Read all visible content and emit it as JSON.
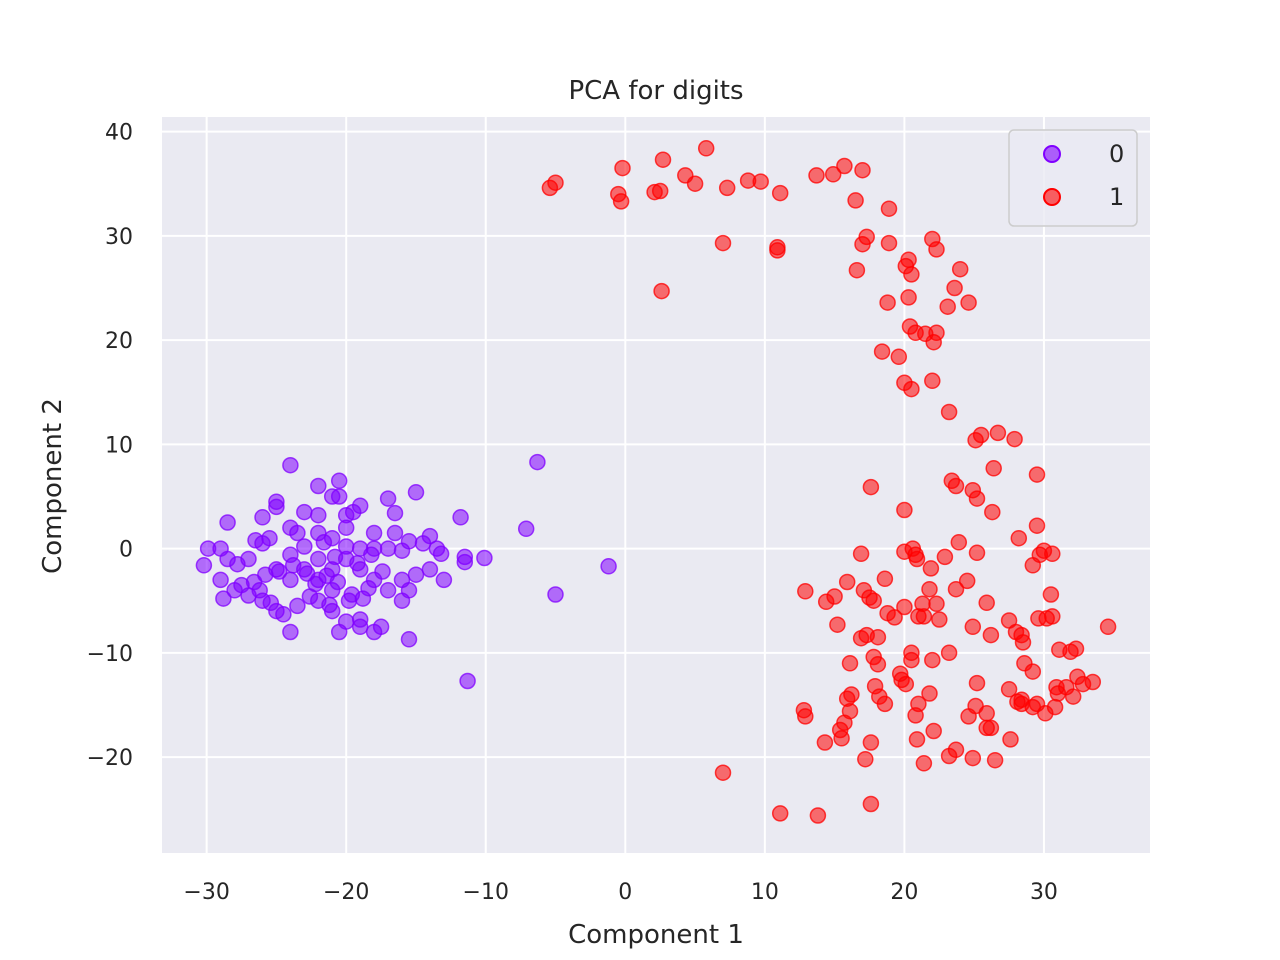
{
  "chart_data": {
    "type": "scatter",
    "title": "PCA for digits",
    "xlabel": "Component 1",
    "ylabel": "Component 2",
    "xlim": [
      -33.2,
      37.6
    ],
    "ylim": [
      -29.2,
      41.4
    ],
    "xticks": [
      -30,
      -20,
      -10,
      0,
      10,
      20,
      30
    ],
    "yticks": [
      -20,
      -10,
      0,
      10,
      20,
      30,
      40
    ],
    "tick_labels": {
      "x": [
        "−30",
        "−20",
        "−10",
        "0",
        "10",
        "20",
        "30"
      ],
      "y": [
        "−20",
        "−10",
        "0",
        "10",
        "20",
        "30",
        "40"
      ]
    },
    "grid": true,
    "legend_position": "top-right",
    "series": [
      {
        "name": "0",
        "color": "#8000ff",
        "points": [
          [
            -24,
            8
          ],
          [
            -20.5,
            6.5
          ],
          [
            -22,
            6
          ],
          [
            -20.5,
            5
          ],
          [
            -21,
            5
          ],
          [
            -25,
            4.5
          ],
          [
            -25,
            4
          ],
          [
            -17,
            4.8
          ],
          [
            -15,
            5.4
          ],
          [
            -19,
            4.1
          ],
          [
            -28.5,
            2.5
          ],
          [
            -26,
            3
          ],
          [
            -23,
            3.5
          ],
          [
            -22,
            3.2
          ],
          [
            -20,
            3.2
          ],
          [
            -19.5,
            3.5
          ],
          [
            -16.5,
            3.4
          ],
          [
            -11.8,
            3
          ],
          [
            -29.9,
            0
          ],
          [
            -29,
            0
          ],
          [
            -28.5,
            -1
          ],
          [
            -27,
            -1
          ],
          [
            -27.8,
            -1.5
          ],
          [
            -26.5,
            0.8
          ],
          [
            -26,
            0.5
          ],
          [
            -25.5,
            1
          ],
          [
            -24,
            2
          ],
          [
            -23.5,
            1.5
          ],
          [
            -22,
            1.5
          ],
          [
            -21,
            1
          ],
          [
            -20,
            2
          ],
          [
            -18,
            1.5
          ],
          [
            -16.5,
            1.5
          ],
          [
            -15.5,
            0.7
          ],
          [
            -14.5,
            0.5
          ],
          [
            -14,
            1.2
          ],
          [
            -13.5,
            0
          ],
          [
            -13.2,
            -0.5
          ],
          [
            -11.5,
            -0.8
          ],
          [
            -11.5,
            -1.3
          ],
          [
            -10.1,
            -0.9
          ],
          [
            -20,
            0.2
          ],
          [
            -19,
            0
          ],
          [
            -18,
            0
          ],
          [
            -17,
            0
          ],
          [
            -16,
            -0.2
          ],
          [
            -25,
            -2
          ],
          [
            -24,
            -3
          ],
          [
            -23,
            -2
          ],
          [
            -22,
            -1
          ],
          [
            -22,
            -3
          ],
          [
            -21,
            -2
          ],
          [
            -21,
            -4
          ],
          [
            -20,
            -1
          ],
          [
            -19,
            -2
          ],
          [
            -18,
            -3
          ],
          [
            -17,
            -4
          ],
          [
            -16,
            -3
          ],
          [
            -15,
            -2.5
          ],
          [
            -14,
            -2
          ],
          [
            -13,
            -3
          ],
          [
            -30.2,
            -1.6
          ],
          [
            -29,
            -3
          ],
          [
            -28,
            -4
          ],
          [
            -27,
            -4.5
          ],
          [
            -26,
            -5
          ],
          [
            -25,
            -6
          ],
          [
            -24.5,
            -6.3
          ],
          [
            -23.5,
            -5.5
          ],
          [
            -22,
            -5
          ],
          [
            -21,
            -6
          ],
          [
            -20,
            -7
          ],
          [
            -19,
            -7.5
          ],
          [
            -18,
            -8
          ],
          [
            -17.5,
            -7.5
          ],
          [
            -16,
            -5
          ],
          [
            -15.5,
            -4
          ],
          [
            -24,
            -8
          ],
          [
            -20.5,
            -8
          ],
          [
            -19,
            -6.8
          ],
          [
            -15.5,
            -8.7
          ],
          [
            -11.3,
            -12.7
          ],
          [
            -28.8,
            -4.8
          ],
          [
            -27.5,
            -3.5
          ],
          [
            -26.2,
            -4
          ],
          [
            -25.8,
            -2.5
          ],
          [
            -24.8,
            -2.2
          ],
          [
            -23.8,
            -1.6
          ],
          [
            -22.8,
            -2.4
          ],
          [
            -22.2,
            -3.4
          ],
          [
            -21.4,
            -2.6
          ],
          [
            -20.6,
            -3.2
          ],
          [
            -19.6,
            -4.4
          ],
          [
            -18.4,
            -3.8
          ],
          [
            -23,
            0.2
          ],
          [
            -24,
            -0.6
          ],
          [
            -21.6,
            0.6
          ],
          [
            -20.8,
            -0.8
          ],
          [
            -19.2,
            -1.4
          ],
          [
            -18.2,
            -0.6
          ],
          [
            -17.4,
            -2.2
          ],
          [
            -26.6,
            -3.2
          ],
          [
            -25.4,
            -5.2
          ],
          [
            -22.6,
            -4.6
          ],
          [
            -21.2,
            -5.4
          ],
          [
            -19.8,
            -5
          ],
          [
            -18.8,
            -4.8
          ],
          [
            -7.1,
            1.9
          ],
          [
            -6.3,
            8.3
          ],
          [
            -5,
            -4.4
          ],
          [
            -1.2,
            -1.7
          ]
        ]
      },
      {
        "name": "1",
        "color": "#ff0000",
        "points": [
          [
            5.8,
            38.4
          ],
          [
            15.7,
            36.7
          ],
          [
            17,
            36.3
          ],
          [
            -0.2,
            36.5
          ],
          [
            2.7,
            37.3
          ],
          [
            4.3,
            35.8
          ],
          [
            5,
            35
          ],
          [
            7.3,
            34.6
          ],
          [
            8.8,
            35.3
          ],
          [
            9.7,
            35.2
          ],
          [
            11.1,
            34.1
          ],
          [
            13.7,
            35.8
          ],
          [
            14.9,
            35.9
          ],
          [
            -5.4,
            34.6
          ],
          [
            -5,
            35.1
          ],
          [
            -0.5,
            34
          ],
          [
            -0.3,
            33.3
          ],
          [
            2.1,
            34.2
          ],
          [
            2.5,
            34.3
          ],
          [
            16.5,
            33.4
          ],
          [
            18.9,
            32.6
          ],
          [
            17.3,
            29.9
          ],
          [
            17,
            29.2
          ],
          [
            18.9,
            29.3
          ],
          [
            22,
            29.7
          ],
          [
            22.3,
            28.7
          ],
          [
            7,
            29.3
          ],
          [
            10.9,
            28.9
          ],
          [
            10.9,
            28.6
          ],
          [
            20.3,
            27.7
          ],
          [
            20.1,
            27.1
          ],
          [
            20.5,
            26.3
          ],
          [
            16.6,
            26.7
          ],
          [
            24,
            26.8
          ],
          [
            23.6,
            25
          ],
          [
            2.6,
            24.7
          ],
          [
            20.3,
            24.1
          ],
          [
            18.8,
            23.6
          ],
          [
            24.6,
            23.6
          ],
          [
            23.1,
            23.2
          ],
          [
            20.4,
            21.3
          ],
          [
            20.8,
            20.7
          ],
          [
            21.5,
            20.6
          ],
          [
            22.3,
            20.7
          ],
          [
            22.1,
            19.8
          ],
          [
            18.4,
            18.9
          ],
          [
            19.6,
            18.4
          ],
          [
            20,
            15.9
          ],
          [
            20.5,
            15.3
          ],
          [
            22,
            16.1
          ],
          [
            23.2,
            13.1
          ],
          [
            25.1,
            10.4
          ],
          [
            25.5,
            10.9
          ],
          [
            26.7,
            11.1
          ],
          [
            27.9,
            10.5
          ],
          [
            26.4,
            7.7
          ],
          [
            29.5,
            7.1
          ],
          [
            23.4,
            6.5
          ],
          [
            23.7,
            6
          ],
          [
            24.9,
            5.6
          ],
          [
            25.2,
            4.8
          ],
          [
            17.6,
            5.9
          ],
          [
            20,
            3.7
          ],
          [
            26.3,
            3.5
          ],
          [
            29.5,
            2.2
          ],
          [
            28.2,
            1
          ],
          [
            23.9,
            0.6
          ],
          [
            20,
            -0.3
          ],
          [
            20.6,
            0
          ],
          [
            20.8,
            -0.6
          ],
          [
            25.2,
            -0.4
          ],
          [
            29.7,
            -0.6
          ],
          [
            30,
            -0.2
          ],
          [
            30.6,
            -0.5
          ],
          [
            16.9,
            -0.5
          ],
          [
            20.9,
            -1
          ],
          [
            21.9,
            -1.9
          ],
          [
            22.9,
            -0.8
          ],
          [
            18.6,
            -2.9
          ],
          [
            15.9,
            -3.2
          ],
          [
            21.8,
            -3.9
          ],
          [
            24.5,
            -3.1
          ],
          [
            29.2,
            -1.6
          ],
          [
            12.9,
            -4.1
          ],
          [
            15,
            -4.6
          ],
          [
            17.1,
            -4
          ],
          [
            17.5,
            -4.7
          ],
          [
            14.4,
            -5.1
          ],
          [
            17.8,
            -5
          ],
          [
            20,
            -5.6
          ],
          [
            21.3,
            -5.3
          ],
          [
            22.3,
            -5.3
          ],
          [
            23.7,
            -3.9
          ],
          [
            25.9,
            -5.2
          ],
          [
            30.5,
            -4.4
          ],
          [
            18.8,
            -6.2
          ],
          [
            19.3,
            -6.6
          ],
          [
            21,
            -6.5
          ],
          [
            21.4,
            -6.5
          ],
          [
            22.5,
            -6.8
          ],
          [
            24.9,
            -7.5
          ],
          [
            27.5,
            -6.9
          ],
          [
            29.6,
            -6.7
          ],
          [
            30.2,
            -6.7
          ],
          [
            30.6,
            -6.5
          ],
          [
            34.6,
            -7.5
          ],
          [
            15.2,
            -7.3
          ],
          [
            16.9,
            -8.6
          ],
          [
            17.3,
            -8.3
          ],
          [
            18.1,
            -8.5
          ],
          [
            26.2,
            -8.3
          ],
          [
            28,
            -8
          ],
          [
            28.4,
            -8.3
          ],
          [
            28.5,
            -9
          ],
          [
            31.1,
            -9.7
          ],
          [
            31.9,
            -9.9
          ],
          [
            32.3,
            -9.6
          ],
          [
            16.1,
            -11
          ],
          [
            20.5,
            -10
          ],
          [
            20.5,
            -10.7
          ],
          [
            22,
            -10.7
          ],
          [
            23.2,
            -10
          ],
          [
            17.8,
            -10.4
          ],
          [
            18.1,
            -11.1
          ],
          [
            19.7,
            -12
          ],
          [
            19.8,
            -12.6
          ],
          [
            20.1,
            -13
          ],
          [
            17.9,
            -13.2
          ],
          [
            18.2,
            -14.2
          ],
          [
            18.6,
            -14.9
          ],
          [
            21.8,
            -13.9
          ],
          [
            25.2,
            -12.9
          ],
          [
            27.5,
            -13.5
          ],
          [
            28.6,
            -11
          ],
          [
            29.2,
            -11.8
          ],
          [
            30.9,
            -13.3
          ],
          [
            31,
            -13.9
          ],
          [
            31.6,
            -13.3
          ],
          [
            32.1,
            -14.2
          ],
          [
            32.4,
            -12.3
          ],
          [
            32.8,
            -13
          ],
          [
            33.5,
            -12.8
          ],
          [
            15.9,
            -14.4
          ],
          [
            16.2,
            -14
          ],
          [
            21,
            -14.9
          ],
          [
            28.1,
            -14.7
          ],
          [
            28.4,
            -14.9
          ],
          [
            28.4,
            -14.5
          ],
          [
            29.2,
            -15.2
          ],
          [
            29.5,
            -14.9
          ],
          [
            30.1,
            -15.8
          ],
          [
            30.8,
            -15.2
          ],
          [
            12.8,
            -15.5
          ],
          [
            12.9,
            -16.1
          ],
          [
            16.1,
            -15.6
          ],
          [
            20.8,
            -16
          ],
          [
            24.6,
            -16.1
          ],
          [
            25.1,
            -15.1
          ],
          [
            25.9,
            -15.8
          ],
          [
            25.9,
            -17.2
          ],
          [
            26.2,
            -17.2
          ],
          [
            15.7,
            -16.7
          ],
          [
            15.4,
            -17.4
          ],
          [
            15.5,
            -18.2
          ],
          [
            14.3,
            -18.6
          ],
          [
            17.6,
            -18.6
          ],
          [
            20.9,
            -18.3
          ],
          [
            22.1,
            -17.5
          ],
          [
            27.6,
            -18.3
          ],
          [
            23.2,
            -19.9
          ],
          [
            23.7,
            -19.3
          ],
          [
            24.9,
            -20.1
          ],
          [
            17.2,
            -20.2
          ],
          [
            21.4,
            -20.6
          ],
          [
            26.5,
            -20.3
          ],
          [
            7,
            -21.5
          ],
          [
            17.6,
            -24.5
          ],
          [
            11.1,
            -25.4
          ],
          [
            13.8,
            -25.6
          ]
        ]
      }
    ]
  }
}
